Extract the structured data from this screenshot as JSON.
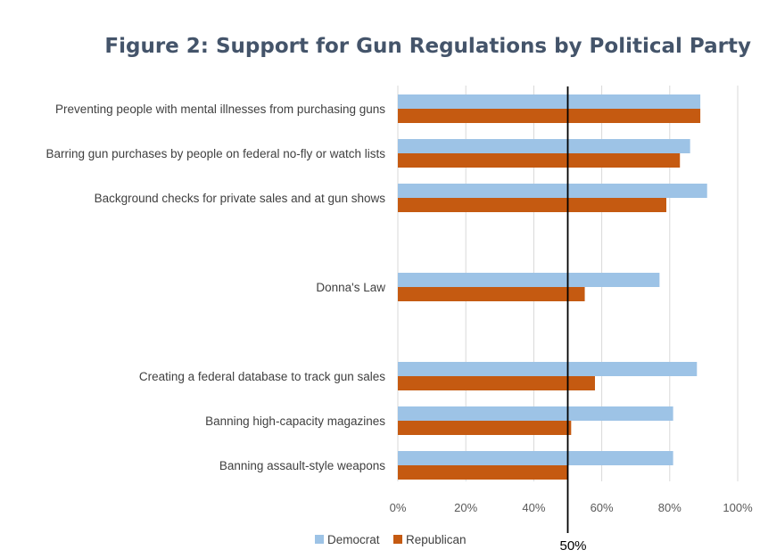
{
  "chart_data": {
    "type": "bar",
    "orientation": "horizontal",
    "title": "Figure 2: Support for Gun Regulations by Political Party",
    "categories": [
      "Preventing people with mental illnesses from purchasing guns",
      "Barring gun purchases by people on federal no-fly or watch lists",
      "Background checks for private sales and at gun shows",
      "Donna's Law",
      "Creating a federal database to track gun sales",
      "Banning high-capacity magazines",
      "Banning assault-style weapons"
    ],
    "series": [
      {
        "name": "Democrat",
        "color": "#9dc3e6",
        "values": [
          89,
          86,
          91,
          77,
          88,
          81,
          81
        ]
      },
      {
        "name": "Republican",
        "color": "#c55a11",
        "values": [
          89,
          83,
          79,
          55,
          58,
          51,
          50
        ]
      }
    ],
    "xlim": [
      0,
      100
    ],
    "x_ticks": [
      "0%",
      "20%",
      "40%",
      "60%",
      "80%",
      "100%"
    ],
    "x_tick_values": [
      0,
      20,
      40,
      60,
      80,
      100
    ],
    "reference_line": {
      "value": 50,
      "label": "50%"
    },
    "grid": true,
    "legend_position": "bottom-left"
  }
}
